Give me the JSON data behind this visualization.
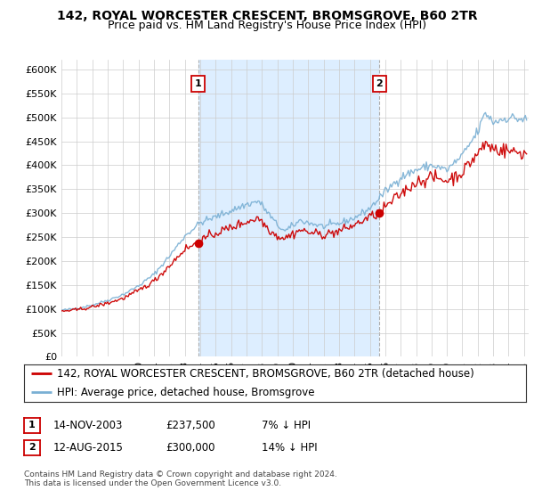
{
  "title": "142, ROYAL WORCESTER CRESCENT, BROMSGROVE, B60 2TR",
  "subtitle": "Price paid vs. HM Land Registry's House Price Index (HPI)",
  "ylim": [
    0,
    620000
  ],
  "yticks": [
    0,
    50000,
    100000,
    150000,
    200000,
    250000,
    300000,
    350000,
    400000,
    450000,
    500000,
    550000,
    600000
  ],
  "xlim_start": 1995.0,
  "xlim_end": 2025.3,
  "sale1_x": 2003.87,
  "sale1_y": 237500,
  "sale1_label": "1",
  "sale2_x": 2015.62,
  "sale2_y": 300000,
  "sale2_label": "2",
  "red_line_color": "#cc0000",
  "blue_line_color": "#7ab0d4",
  "vline_color": "#cc0000",
  "vline_gray_color": "#999999",
  "shading_color": "#ddeeff",
  "annotation_box_color": "#cc0000",
  "grid_color": "#cccccc",
  "background_color": "#ffffff",
  "legend_entry1": "142, ROYAL WORCESTER CRESCENT, BROMSGROVE, B60 2TR (detached house)",
  "legend_entry2": "HPI: Average price, detached house, Bromsgrove",
  "table_row1": [
    "1",
    "14-NOV-2003",
    "£237,500",
    "7% ↓ HPI"
  ],
  "table_row2": [
    "2",
    "12-AUG-2015",
    "£300,000",
    "14% ↓ HPI"
  ],
  "footnote": "Contains HM Land Registry data © Crown copyright and database right 2024.\nThis data is licensed under the Open Government Licence v3.0.",
  "title_fontsize": 10,
  "subtitle_fontsize": 9,
  "tick_fontsize": 8,
  "legend_fontsize": 8.5
}
